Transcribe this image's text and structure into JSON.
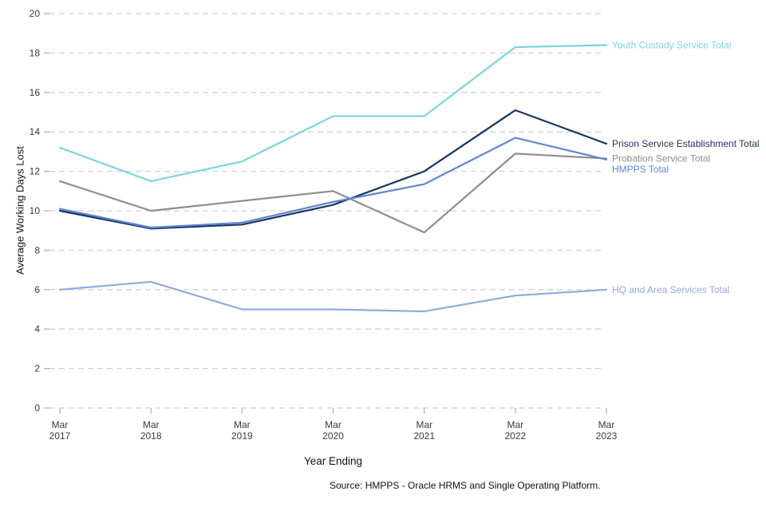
{
  "chart_data": {
    "type": "line",
    "title": "",
    "xlabel": "Year Ending",
    "ylabel": "Average Working Days Lost",
    "source": "Source: HMPPS - Oracle HRMS and Single Operating Platform.",
    "categories": [
      "Mar 2017",
      "Mar 2018",
      "Mar 2019",
      "Mar 2020",
      "Mar 2021",
      "Mar 2022",
      "Mar 2023"
    ],
    "ylim": [
      0,
      20
    ],
    "ytick_step": 2,
    "grid": "dashed-horizontal",
    "legend_position": "right-end-labels",
    "grid_color": "#d2d2d2",
    "tick_color": "#b5b5b5",
    "series": [
      {
        "name": "Youth Custody Service Total",
        "color": "#7bd6de",
        "values": [
          13.2,
          11.5,
          12.5,
          14.8,
          14.8,
          18.3,
          18.4
        ]
      },
      {
        "name": "Prison Service Establishment Total",
        "color": "#17355f",
        "values": [
          10.0,
          9.1,
          9.3,
          10.3,
          12.0,
          15.1,
          13.4
        ]
      },
      {
        "name": "Probation Service Total",
        "color": "#8e8e8e",
        "values": [
          11.5,
          10.0,
          10.5,
          11.0,
          8.9,
          12.9,
          12.65
        ]
      },
      {
        "name": "HMPPS Total",
        "color": "#5d87d1",
        "values": [
          10.1,
          9.15,
          9.4,
          10.45,
          11.35,
          13.7,
          12.6
        ]
      },
      {
        "name": "HQ and Area Services Total",
        "color": "#93a9dd",
        "values": [
          6.0,
          6.4,
          5.0,
          5.0,
          4.9,
          5.7,
          6.0
        ]
      }
    ]
  }
}
